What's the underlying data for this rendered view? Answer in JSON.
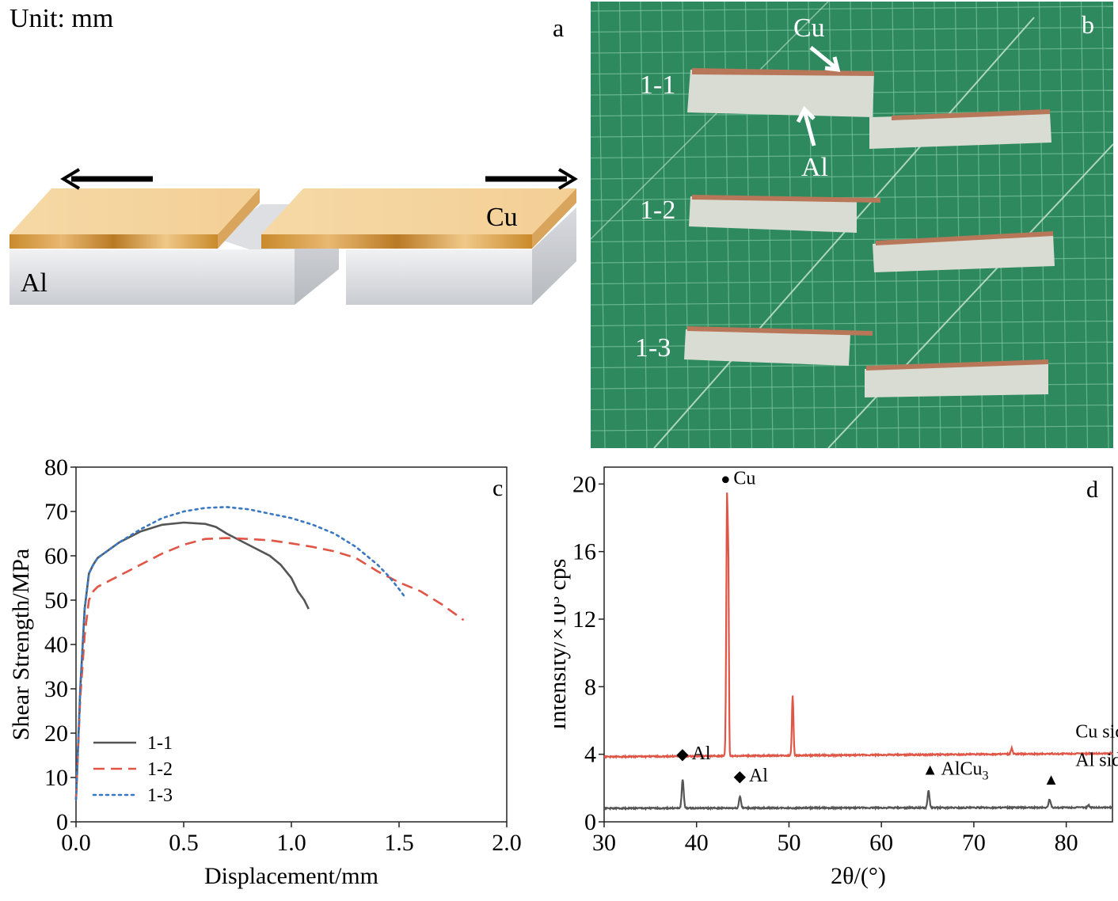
{
  "panel_a": {
    "letter": "a",
    "unit_label": "Unit: mm",
    "cu_label": "Cu",
    "al_label": "Al"
  },
  "panel_b": {
    "letter": "b",
    "cu_label": "Cu",
    "al_label": "Al",
    "specimens": [
      "1-1",
      "1-2",
      "1-3"
    ],
    "colors": {
      "mat": "#2e8a5e",
      "grid": "#7fc7a0",
      "al": "#d9dcd3",
      "cu": "#b9775a"
    }
  },
  "chart_data": [
    {
      "panel": "c",
      "type": "line",
      "xlabel": "Displacement/mm",
      "ylabel": "Shear Strength/MPa",
      "xlim": [
        0,
        2.0
      ],
      "ylim": [
        0,
        80
      ],
      "xticks": [
        "0.0",
        "0.5",
        "1.0",
        "1.5",
        "2.0"
      ],
      "yticks": [
        "0",
        "10",
        "20",
        "30",
        "40",
        "50",
        "60",
        "70",
        "80"
      ],
      "legend": "bottom-left",
      "series": [
        {
          "name": "1-1",
          "color": "#555555",
          "style": "solid",
          "x": [
            0,
            0.02,
            0.04,
            0.06,
            0.08,
            0.1,
            0.2,
            0.3,
            0.4,
            0.5,
            0.6,
            0.65,
            0.7,
            0.8,
            0.9,
            0.95,
            1.0,
            1.03,
            1.06,
            1.08
          ],
          "y": [
            5,
            30,
            48,
            56,
            58,
            59.5,
            63,
            65.5,
            67,
            67.5,
            67.2,
            66.5,
            65,
            62.5,
            60,
            58,
            55,
            52,
            50,
            48
          ]
        },
        {
          "name": "1-2",
          "color": "#e05545",
          "style": "dashed",
          "x": [
            0,
            0.02,
            0.04,
            0.06,
            0.08,
            0.1,
            0.2,
            0.3,
            0.4,
            0.5,
            0.6,
            0.7,
            0.8,
            0.9,
            1.0,
            1.1,
            1.2,
            1.3,
            1.4,
            1.5,
            1.6,
            1.7,
            1.8
          ],
          "y": [
            5,
            28,
            42,
            50,
            52,
            53,
            55.5,
            58,
            60.5,
            62.5,
            63.8,
            64,
            63.8,
            63.5,
            62.8,
            62,
            61,
            59.5,
            56.5,
            54,
            52,
            49,
            45.5
          ]
        },
        {
          "name": "1-3",
          "color": "#3a78c0",
          "style": "dotted",
          "x": [
            0,
            0.02,
            0.04,
            0.06,
            0.08,
            0.1,
            0.2,
            0.3,
            0.4,
            0.5,
            0.6,
            0.7,
            0.8,
            0.9,
            1.0,
            1.1,
            1.2,
            1.3,
            1.4,
            1.45,
            1.5,
            1.53
          ],
          "y": [
            5,
            30,
            48,
            56,
            58,
            59.5,
            63,
            66,
            68.5,
            70,
            70.8,
            71,
            70.5,
            69.5,
            68.5,
            67,
            65,
            62,
            58,
            55.5,
            52.5,
            50.5
          ]
        }
      ]
    },
    {
      "panel": "d",
      "type": "line",
      "xlabel": "2θ/(°)",
      "ylabel": "Intensity/×10³ cps",
      "xlim": [
        30,
        85
      ],
      "ylim": [
        0,
        21
      ],
      "xticks": [
        "30",
        "40",
        "50",
        "60",
        "70",
        "80"
      ],
      "yticks": [
        "0",
        "4",
        "8",
        "12",
        "16",
        "20"
      ],
      "series": [
        {
          "name": "Cu side",
          "color": "#e05545",
          "baseline_start": 3.85,
          "baseline_end": 4.05,
          "peaks": [
            {
              "x": 43.3,
              "height": 19.2,
              "width": 0.12
            },
            {
              "x": 43.45,
              "height": 12.4,
              "width": 0.08
            },
            {
              "x": 50.4,
              "height": 7.4,
              "width": 0.12
            },
            {
              "x": 74.1,
              "height": 4.2,
              "width": 0.12
            }
          ]
        },
        {
          "name": "Al side",
          "color": "#555555",
          "baseline_start": 0.8,
          "baseline_end": 0.85,
          "peaks": [
            {
              "x": 38.5,
              "height": 2.5,
              "width": 0.15
            },
            {
              "x": 44.7,
              "height": 1.5,
              "width": 0.15
            },
            {
              "x": 65.1,
              "height": 1.8,
              "width": 0.15
            },
            {
              "x": 78.2,
              "height": 1.3,
              "width": 0.15
            },
            {
              "x": 82.4,
              "height": 0.95,
              "width": 0.15
            }
          ]
        }
      ],
      "annotations": [
        {
          "symbol": "●",
          "label": "Cu",
          "x": 43.3,
          "y": 20.0
        },
        {
          "symbol": "◆",
          "label": "Al",
          "x": 38.5,
          "y": 3.7
        },
        {
          "symbol": "◆",
          "label": "Al",
          "x": 44.7,
          "y": 2.4
        },
        {
          "symbol": "▲",
          "label": "AlCu",
          "sub": "3",
          "x": 65.1,
          "y": 2.8
        },
        {
          "symbol": "▲",
          "label": "",
          "x": 78.2,
          "y": 2.2
        }
      ],
      "series_labels": [
        {
          "text": "Cu side",
          "x": 81,
          "y": 5.0
        },
        {
          "text": "Al side",
          "x": 81,
          "y": 3.3
        }
      ]
    }
  ],
  "panel_letters": {
    "c": "c",
    "d": "d"
  }
}
